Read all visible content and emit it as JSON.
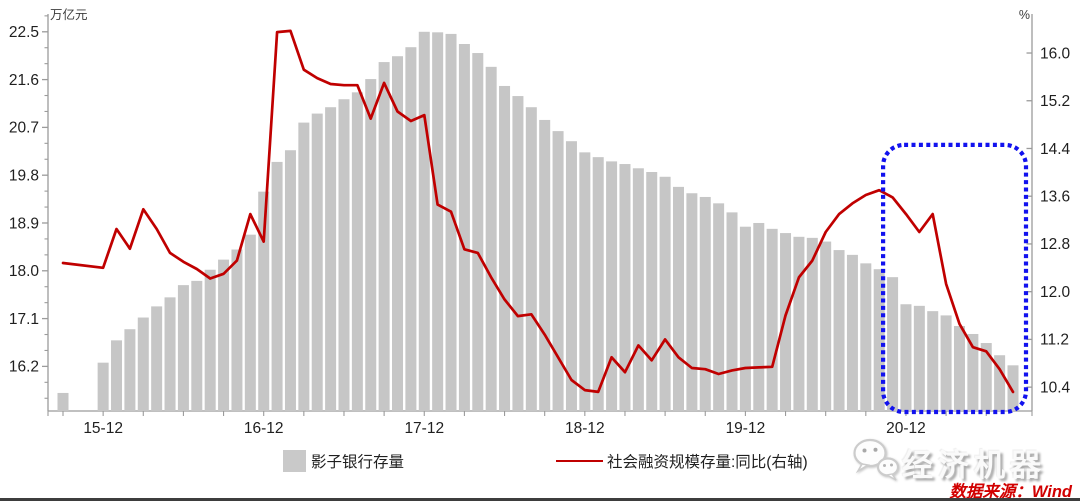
{
  "chart_data": {
    "type": "combo-bar-line",
    "categories": [
      "15-09",
      "15-12",
      "16-01",
      "16-02",
      "16-03",
      "16-04",
      "16-05",
      "16-06",
      "16-07",
      "16-08",
      "16-09",
      "16-10",
      "16-11",
      "16-12",
      "17-01",
      "17-02",
      "17-03",
      "17-04",
      "17-05",
      "17-06",
      "17-07",
      "17-08",
      "17-09",
      "17-10",
      "17-11",
      "17-12",
      "18-01",
      "18-02",
      "18-03",
      "18-04",
      "18-05",
      "18-06",
      "18-07",
      "18-08",
      "18-09",
      "18-10",
      "18-11",
      "18-12",
      "19-01",
      "19-02",
      "19-03",
      "19-04",
      "19-05",
      "19-06",
      "19-07",
      "19-08",
      "19-09",
      "19-10",
      "19-11",
      "19-12",
      "20-01",
      "20-02",
      "20-03",
      "20-04",
      "20-05",
      "20-06",
      "20-07",
      "20-08",
      "20-09",
      "20-10",
      "20-11",
      "20-12",
      "21-01",
      "21-02",
      "21-03",
      "21-04",
      "21-05",
      "21-06",
      "21-07",
      "21-08"
    ],
    "series": [
      {
        "name": "影子银行存量",
        "kind": "bar",
        "axis": "left",
        "unit": "万亿元",
        "color": "#c6c6c6",
        "values": [
          15.7,
          16.27,
          16.69,
          16.9,
          17.12,
          17.33,
          17.5,
          17.73,
          17.81,
          18.02,
          18.21,
          18.4,
          18.68,
          19.49,
          20.05,
          20.27,
          20.79,
          20.96,
          21.08,
          21.23,
          21.36,
          21.61,
          21.93,
          22.04,
          22.21,
          22.5,
          22.49,
          22.46,
          22.27,
          22.1,
          21.84,
          21.48,
          21.29,
          21.08,
          20.84,
          20.63,
          20.44,
          20.23,
          20.14,
          20.06,
          20.01,
          19.93,
          19.86,
          19.77,
          19.58,
          19.46,
          19.39,
          19.27,
          19.1,
          18.83,
          18.9,
          18.79,
          18.71,
          18.64,
          18.62,
          18.55,
          18.39,
          18.3,
          18.14,
          18.03,
          17.88,
          17.37,
          17.34,
          17.24,
          17.16,
          16.96,
          16.81,
          16.64,
          16.41,
          16.22
        ]
      },
      {
        "name": "社会融资规模存量:同比(右轴)",
        "kind": "line",
        "axis": "right",
        "unit": "%",
        "color": "#c00000",
        "values": [
          12.48,
          12.4,
          13.05,
          12.72,
          13.38,
          13.05,
          12.65,
          12.5,
          12.38,
          12.22,
          12.3,
          12.52,
          13.3,
          12.84,
          16.35,
          16.37,
          15.72,
          15.58,
          15.48,
          15.46,
          15.46,
          14.9,
          15.5,
          15.02,
          14.86,
          14.96,
          13.46,
          13.34,
          12.71,
          12.65,
          12.24,
          11.87,
          11.59,
          11.62,
          11.28,
          10.9,
          10.52,
          10.35,
          10.32,
          10.9,
          10.65,
          11.1,
          10.85,
          11.2,
          10.9,
          10.72,
          10.7,
          10.62,
          10.68,
          10.72,
          10.73,
          10.74,
          11.6,
          12.24,
          12.52,
          13.0,
          13.3,
          13.48,
          13.62,
          13.7,
          13.58,
          13.3,
          13.0,
          13.3,
          12.13,
          11.46,
          11.07,
          11.0,
          10.7,
          10.32
        ]
      }
    ],
    "left_axis": {
      "unit_label": "万亿元",
      "ticks": [
        16.2,
        17.1,
        18.0,
        18.9,
        19.8,
        20.7,
        21.6,
        22.5
      ],
      "range": [
        15.36,
        22.835
      ],
      "minor_step": 0.3
    },
    "right_axis": {
      "unit_label": "%",
      "ticks": [
        10.4,
        11.2,
        12.0,
        12.8,
        13.6,
        14.4,
        15.2,
        16.0
      ],
      "range": [
        10.0,
        16.654
      ]
    },
    "x_axis": {
      "year_tick_labels": [
        "15-12",
        "16-12",
        "17-12",
        "18-12",
        "19-12",
        "20-12"
      ],
      "minor_tick_every_months": 3
    },
    "highlight_box": {
      "from": "20-11",
      "to": "21-08",
      "top_value_right_axis": 14.46,
      "color": "#1212ee",
      "style": "dotted"
    },
    "grid": "off",
    "legend_position": "bottom"
  },
  "legend": {
    "bar_label": "影子银行存量",
    "line_label": "社会融资规模存量:同比(右轴)"
  },
  "watermark": {
    "brand": "经济机器"
  },
  "source": {
    "text": "数据来源：Wind"
  },
  "colors": {
    "bar": "#c6c6c6",
    "line": "#c00000",
    "highlight": "#1212ee",
    "axis": "#9b9b9b",
    "tick_label": "#1f1f1f",
    "source_text": "#d10000"
  }
}
